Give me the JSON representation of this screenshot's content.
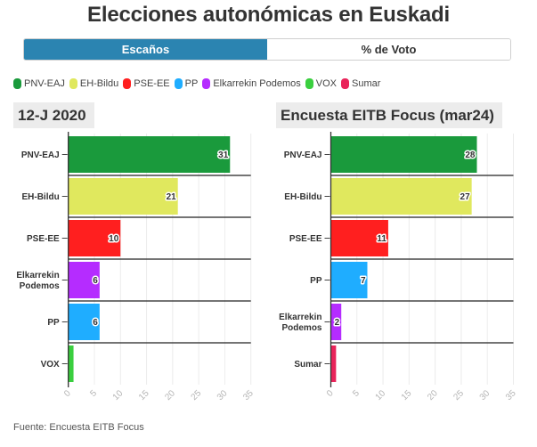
{
  "header": {
    "title": "Elecciones autonómicas en Euskadi"
  },
  "toggle": {
    "options": [
      {
        "label": "Escaños",
        "active": true
      },
      {
        "label": "% de Voto",
        "active": false
      }
    ]
  },
  "legend": [
    {
      "label": "PNV-EAJ",
      "color": "#1a9a3c"
    },
    {
      "label": "EH-Bildu",
      "color": "#e0e85e"
    },
    {
      "label": "PSE-EE",
      "color": "#ff1f1f"
    },
    {
      "label": "PP",
      "color": "#1fadff"
    },
    {
      "label": "Elkarrekin Podemos",
      "color": "#b52cff"
    },
    {
      "label": "VOX",
      "color": "#3acf3f"
    },
    {
      "label": "Sumar",
      "color": "#e9245a"
    }
  ],
  "footer": {
    "source": "Fuente: Encuesta EITB Focus"
  },
  "chart_data": [
    {
      "type": "bar",
      "orientation": "horizontal",
      "title": "12-J 2020",
      "categories": [
        "PNV-EAJ",
        "EH-Bildu",
        "PSE-EE",
        "Elkarrekin Podemos",
        "PP",
        "VOX"
      ],
      "values": [
        31,
        21,
        10,
        6,
        6,
        1
      ],
      "data_labels": [
        "31",
        "21",
        "10",
        "6",
        "6",
        ""
      ],
      "colors": [
        "#1a9a3c",
        "#e0e85e",
        "#ff1f1f",
        "#b52cff",
        "#1fadff",
        "#3acf3f"
      ],
      "xlabel": "",
      "ylabel": "",
      "xlim": [
        0,
        35
      ],
      "xticks": [
        0,
        5,
        10,
        15,
        20,
        25,
        30,
        35
      ],
      "grid": true
    },
    {
      "type": "bar",
      "orientation": "horizontal",
      "title": "Encuesta EITB Focus (mar24)",
      "categories": [
        "PNV-EAJ",
        "EH-Bildu",
        "PSE-EE",
        "PP",
        "Elkarrekin Podemos",
        "Sumar"
      ],
      "values": [
        28,
        27,
        11,
        7,
        2,
        1
      ],
      "data_labels": [
        "28",
        "27",
        "11",
        "7",
        "2",
        ""
      ],
      "colors": [
        "#1a9a3c",
        "#e0e85e",
        "#ff1f1f",
        "#1fadff",
        "#b52cff",
        "#e9245a"
      ],
      "xlabel": "",
      "ylabel": "",
      "xlim": [
        0,
        35
      ],
      "xticks": [
        0,
        5,
        10,
        15,
        20,
        25,
        30,
        35
      ],
      "grid": true
    }
  ]
}
